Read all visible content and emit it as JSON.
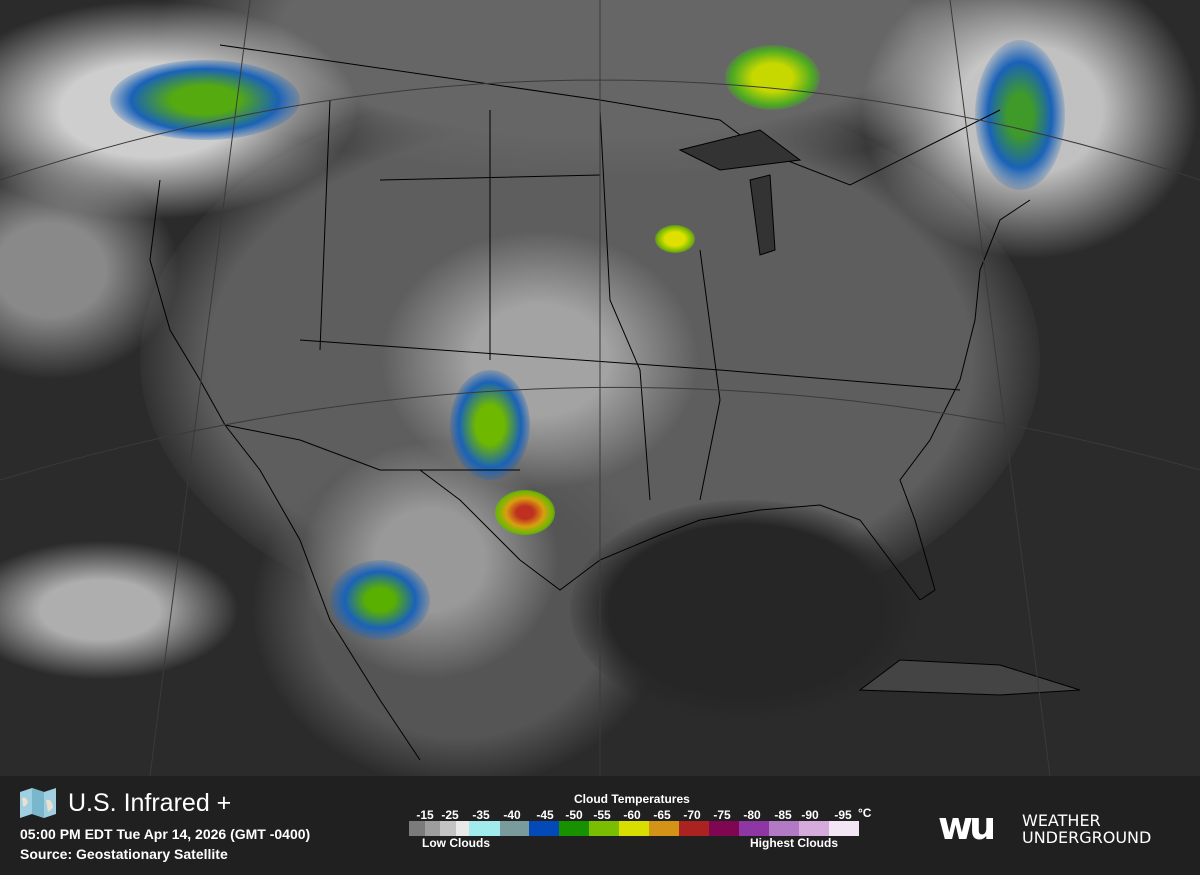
{
  "map": {
    "land_color": "#5a5a5a",
    "ocean_color": "#2b2b2b",
    "cloud_color": "#e8e8e8"
  },
  "header": {
    "title": "U.S. Infrared +",
    "timestamp": "05:00 PM EDT Tue Apr 14, 2026 (GMT -0400)",
    "source": "Source: Geostationary Satellite",
    "icon": "folded-map-icon"
  },
  "legend": {
    "title": "Cloud Temperatures",
    "unit": "°C",
    "low_label": "Low Clouds",
    "high_label": "Highest Clouds",
    "labels": [
      "-15",
      "-25",
      "-35",
      "-40",
      "-45",
      "-50",
      "-55",
      "-60",
      "-65",
      "-70",
      "-75",
      "-80",
      "-85",
      "-90",
      "-95"
    ],
    "colors": [
      "#7b7b7b",
      "#9d9d9d",
      "#c3c3c3",
      "#e9e9e9",
      "#a2ebed",
      "#7a9b9b",
      "#0449b8",
      "#179100",
      "#7bbd00",
      "#d8df00",
      "#d29316",
      "#ab2320",
      "#7f0650",
      "#8e36a4",
      "#b27ac5",
      "#d4abdb",
      "#f2e6f4"
    ]
  },
  "brand": {
    "mark": "wu",
    "line1": "WEATHER",
    "line2": "UNDERGROUND"
  }
}
